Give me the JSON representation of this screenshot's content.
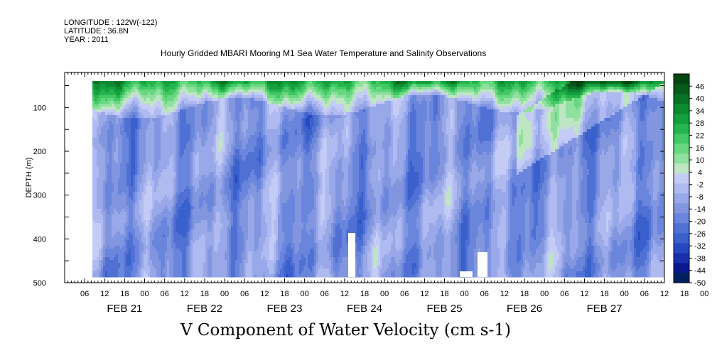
{
  "header": {
    "longitude": "LONGITUDE : 122W(-122)",
    "latitude": "LATITUDE : 36.8N",
    "year": "YEAR : 2011"
  },
  "chart_data": {
    "type": "heatmap",
    "title": "Hourly Gridded MBARI Mooring M1 Sea Water Temperature and Salinity Observations",
    "xlabel": "V Component of Water Velocity (cm s-1)",
    "ylabel": "DEPTH (m)",
    "x_hour_ticks": [
      "06",
      "12",
      "18",
      "00",
      "06",
      "12",
      "18",
      "00",
      "06",
      "12",
      "18",
      "00",
      "06",
      "12",
      "18",
      "00",
      "06",
      "12",
      "18",
      "00",
      "06",
      "12",
      "18",
      "00",
      "06",
      "12",
      "18",
      "00",
      "06",
      "12",
      "18",
      "00"
    ],
    "x_date_labels": [
      "FEB 21",
      "FEB 22",
      "FEB 23",
      "FEB 24",
      "FEB 25",
      "FEB 26",
      "FEB 27"
    ],
    "x_range": [
      "FEB 20 18:00",
      "FEB 28 00:00"
    ],
    "y_range": [
      500,
      0
    ],
    "y_ticks": [
      "100",
      "200",
      "300",
      "400",
      "500"
    ],
    "colorbar": {
      "labels": [
        "46",
        "40",
        "34",
        "28",
        "22",
        "16",
        "10",
        "4",
        "-2",
        "-8",
        "-14",
        "-20",
        "-26",
        "-32",
        "-38",
        "-44",
        "-50"
      ],
      "range": [
        -50,
        52
      ],
      "colors": [
        "#002060",
        "#0a1a8c",
        "#1830a8",
        "#2848c0",
        "#3a60cc",
        "#5070d4",
        "#6a86dc",
        "#8296e0",
        "#98a8e8",
        "#aebaf0",
        "#c4ccf6",
        "#bfe6c2",
        "#90e0a0",
        "#66d880",
        "#42c864",
        "#26b44e",
        "#14a03e",
        "#0c8a30",
        "#087224",
        "#065a1a",
        "#044612"
      ]
    }
  }
}
